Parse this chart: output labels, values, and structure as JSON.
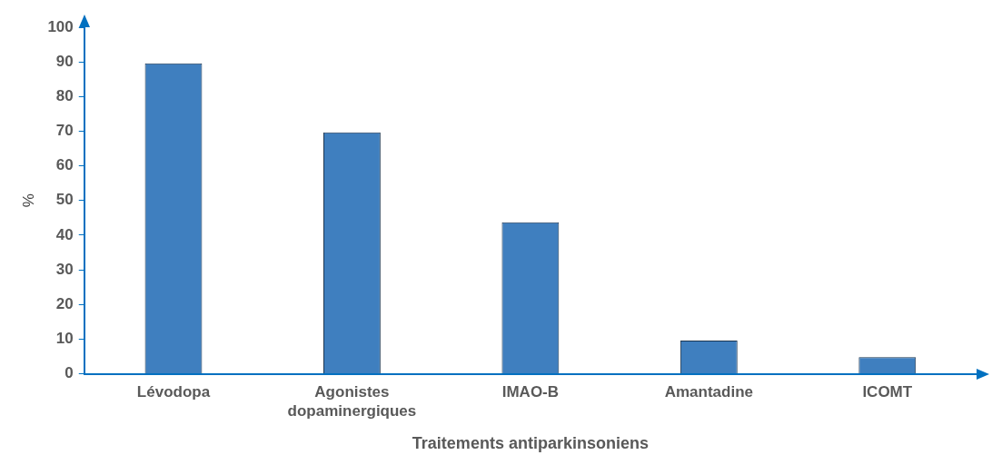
{
  "chart_data": {
    "type": "bar",
    "xlabel": "Traitements antiparkinsoniens",
    "ylabel": "%",
    "categories": [
      "Lévodopa",
      "Agonistes dopaminergiques",
      "IMAO-B",
      "Amantadine",
      "ICOMT"
    ],
    "values": [
      89.6,
      69.7,
      43.7,
      9.6,
      4.8
    ],
    "color": "#3f7fbf",
    "ylim": [
      0,
      100
    ],
    "yticks": [
      0,
      10,
      20,
      30,
      40,
      50,
      60,
      70,
      80,
      90,
      100
    ],
    "grid": false,
    "legend": false
  }
}
